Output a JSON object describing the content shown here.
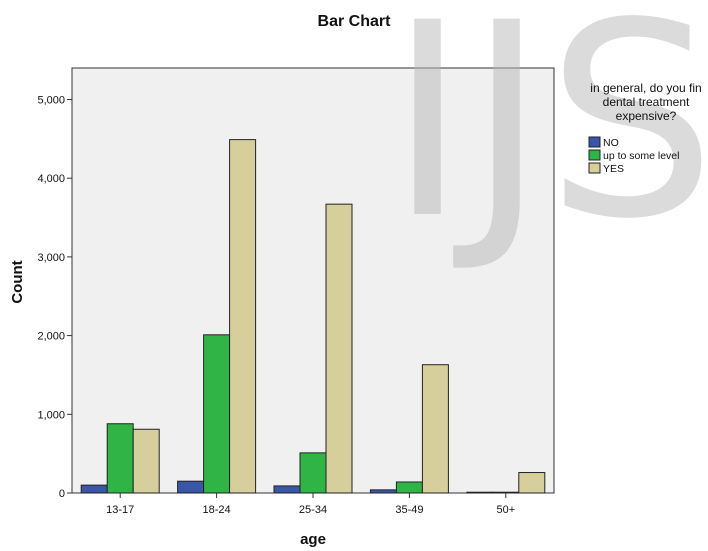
{
  "watermark": "IJS",
  "chart_data": {
    "type": "bar",
    "title": "Bar Chart",
    "xlabel": "age",
    "ylabel": "Count",
    "categories": [
      "13-17",
      "18-24",
      "25-34",
      "35-49",
      "50+"
    ],
    "ylim": [
      0,
      5400
    ],
    "yticks": [
      0,
      1000,
      2000,
      3000,
      4000,
      5000
    ],
    "ytick_labels": [
      "0",
      "1,000",
      "2,000",
      "3,000",
      "4,000",
      "5,000"
    ],
    "grid": false,
    "legend": {
      "position": "right",
      "title_lines": [
        "in general, do you fin",
        "dental treatment",
        "expensive?"
      ]
    },
    "series": [
      {
        "name": "NO",
        "color": "#3a56a8",
        "values": [
          100,
          150,
          90,
          40,
          10
        ]
      },
      {
        "name": "up to some level",
        "color": "#2fb445",
        "values": [
          880,
          2010,
          510,
          140,
          10
        ]
      },
      {
        "name": "YES",
        "color": "#d6cf9c",
        "values": [
          810,
          4490,
          3670,
          1630,
          260
        ]
      }
    ]
  }
}
